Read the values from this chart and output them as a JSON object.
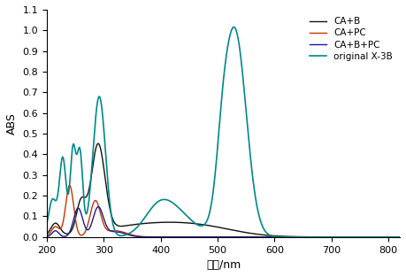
{
  "title": "",
  "xlabel": "波长/nm",
  "ylabel": "ABS",
  "xlim": [
    200,
    820
  ],
  "ylim": [
    0,
    1.1
  ],
  "xticks": [
    200,
    300,
    400,
    500,
    600,
    700,
    800
  ],
  "yticks": [
    0.0,
    0.1,
    0.2,
    0.3,
    0.4,
    0.5,
    0.6,
    0.7,
    0.8,
    0.9,
    1.0,
    1.1
  ],
  "legend": [
    "CA+B",
    "CA+PC",
    "CA+B+PC",
    "original X-3B"
  ],
  "colors": [
    "#111111",
    "#cc3300",
    "#1a1a99",
    "#008888"
  ],
  "linewidths": [
    1.0,
    1.0,
    1.0,
    1.2
  ]
}
